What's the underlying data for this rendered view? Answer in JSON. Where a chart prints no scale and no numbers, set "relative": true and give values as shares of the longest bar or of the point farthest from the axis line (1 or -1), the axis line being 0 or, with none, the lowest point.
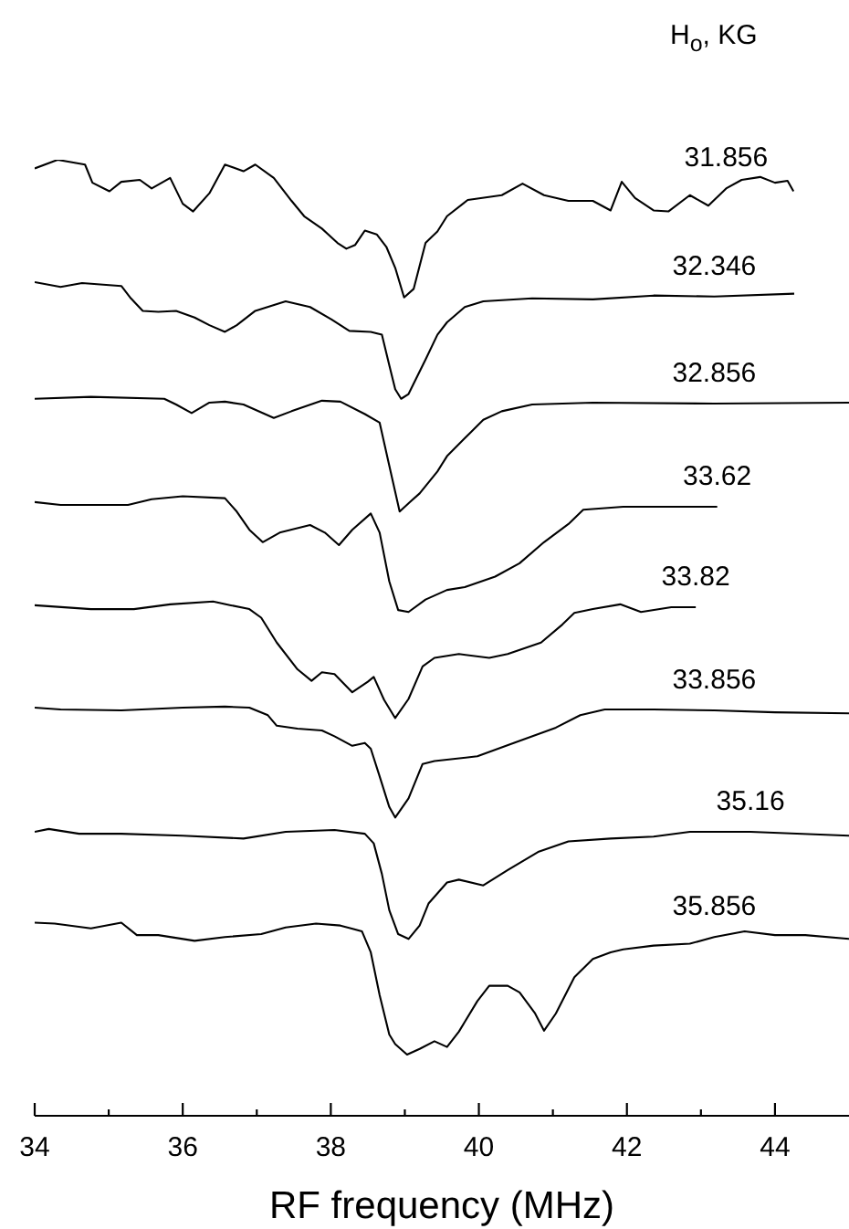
{
  "chart_data": {
    "type": "line",
    "relative": true,
    "xlabel": "RF frequency (MHz)",
    "legend_title": "H$_{o}$, KG",
    "xlim": [
      34,
      45
    ],
    "xticks": [
      34,
      {
        "value": 35,
        "label": null
      },
      36,
      {
        "value": 37,
        "label": null
      },
      38,
      {
        "value": 39,
        "label": null
      },
      40,
      {
        "value": 41,
        "label": null
      },
      42,
      {
        "value": 43,
        "label": null
      },
      44
    ],
    "line_style": "solid",
    "series": [
      {
        "name": "31.856",
        "color": "#000000",
        "x": [
          34.0,
          34.31,
          34.68,
          34.78,
          35.01,
          35.17,
          35.42,
          35.58,
          35.83,
          36.0,
          36.14,
          36.36,
          36.57,
          36.82,
          36.98,
          37.23,
          37.47,
          37.64,
          37.88,
          38.09,
          38.21,
          38.33,
          38.46,
          38.62,
          38.75,
          38.87,
          38.99,
          39.12,
          39.28,
          39.44,
          39.57,
          39.85,
          40.31,
          40.59,
          40.88,
          41.21,
          41.54,
          41.78,
          41.93,
          42.11,
          42.36,
          42.56,
          42.85,
          43.1,
          43.34,
          43.55,
          43.8,
          44.0,
          44.17,
          44.25
        ],
        "values": [
          0.991,
          1.0,
          0.995,
          0.976,
          0.967,
          0.977,
          0.979,
          0.97,
          0.981,
          0.954,
          0.946,
          0.965,
          0.995,
          0.988,
          0.995,
          0.981,
          0.957,
          0.941,
          0.928,
          0.913,
          0.907,
          0.911,
          0.926,
          0.922,
          0.909,
          0.887,
          0.856,
          0.865,
          0.913,
          0.925,
          0.941,
          0.958,
          0.963,
          0.975,
          0.963,
          0.957,
          0.957,
          0.947,
          0.977,
          0.96,
          0.947,
          0.946,
          0.963,
          0.952,
          0.97,
          0.979,
          0.982,
          0.976,
          0.978,
          0.967
        ]
      },
      {
        "name": "32.346",
        "color": "#000000",
        "x": [
          34.0,
          34.35,
          34.64,
          35.17,
          35.3,
          35.46,
          35.67,
          35.91,
          36.16,
          36.36,
          36.57,
          36.73,
          36.98,
          37.39,
          37.72,
          38.01,
          38.25,
          38.54,
          38.69,
          38.79,
          38.87,
          38.95,
          39.05,
          39.28,
          39.44,
          39.57,
          39.81,
          40.06,
          40.72,
          41.54,
          42.36,
          43.18,
          44.26
        ],
        "values": [
          0.872,
          0.867,
          0.871,
          0.868,
          0.855,
          0.842,
          0.841,
          0.842,
          0.835,
          0.827,
          0.82,
          0.827,
          0.842,
          0.852,
          0.846,
          0.833,
          0.821,
          0.82,
          0.817,
          0.785,
          0.76,
          0.75,
          0.755,
          0.791,
          0.817,
          0.83,
          0.846,
          0.852,
          0.855,
          0.854,
          0.858,
          0.857,
          0.86
        ]
      },
      {
        "name": "32.856",
        "color": "#000000",
        "x": [
          34.0,
          34.76,
          35.75,
          35.91,
          36.12,
          36.36,
          36.57,
          36.82,
          37.23,
          37.47,
          37.88,
          38.13,
          38.46,
          38.66,
          38.79,
          38.93,
          39.07,
          39.2,
          39.44,
          39.57,
          39.89,
          40.06,
          40.31,
          40.72,
          41.54,
          43.18,
          45.0
        ],
        "values": [
          0.75,
          0.752,
          0.75,
          0.744,
          0.735,
          0.746,
          0.747,
          0.744,
          0.73,
          0.737,
          0.748,
          0.747,
          0.734,
          0.725,
          0.68,
          0.632,
          0.642,
          0.651,
          0.674,
          0.69,
          0.715,
          0.728,
          0.737,
          0.744,
          0.746,
          0.745,
          0.746
        ]
      },
      {
        "name": "33.62",
        "color": "#000000",
        "x": [
          34.0,
          34.35,
          35.26,
          35.58,
          36.0,
          36.57,
          36.73,
          36.9,
          37.08,
          37.31,
          37.72,
          37.92,
          38.11,
          38.29,
          38.54,
          38.66,
          38.79,
          38.91,
          39.05,
          39.28,
          39.57,
          39.81,
          40.22,
          40.55,
          40.88,
          41.21,
          41.41,
          41.95,
          42.52,
          43.22
        ],
        "values": [
          0.642,
          0.639,
          0.639,
          0.645,
          0.648,
          0.646,
          0.632,
          0.613,
          0.6,
          0.61,
          0.618,
          0.61,
          0.597,
          0.613,
          0.63,
          0.61,
          0.559,
          0.529,
          0.527,
          0.54,
          0.55,
          0.553,
          0.564,
          0.578,
          0.6,
          0.619,
          0.634,
          0.637,
          0.637,
          0.637
        ]
      },
      {
        "name": "33.82",
        "color": "#000000",
        "x": [
          34.0,
          34.76,
          35.34,
          35.83,
          36.41,
          36.65,
          36.9,
          37.06,
          37.27,
          37.55,
          37.74,
          37.88,
          38.05,
          38.29,
          38.5,
          38.58,
          38.72,
          38.87,
          39.05,
          39.24,
          39.4,
          39.73,
          40.14,
          40.39,
          40.84,
          41.13,
          41.29,
          41.54,
          41.91,
          42.19,
          42.6,
          42.93
        ],
        "values": [
          0.534,
          0.53,
          0.53,
          0.535,
          0.538,
          0.534,
          0.53,
          0.521,
          0.495,
          0.467,
          0.455,
          0.464,
          0.462,
          0.443,
          0.454,
          0.459,
          0.435,
          0.416,
          0.436,
          0.47,
          0.479,
          0.483,
          0.479,
          0.483,
          0.495,
          0.514,
          0.526,
          0.53,
          0.535,
          0.527,
          0.532,
          0.532
        ]
      },
      {
        "name": "33.856",
        "color": "#000000",
        "x": [
          34.0,
          34.35,
          35.17,
          36.0,
          36.57,
          36.9,
          37.15,
          37.27,
          37.55,
          37.88,
          38.05,
          38.29,
          38.46,
          38.54,
          38.66,
          38.79,
          38.87,
          39.05,
          39.24,
          39.4,
          39.98,
          40.47,
          41.04,
          41.37,
          41.7,
          42.36,
          43.18,
          44.0,
          45.0
        ],
        "values": [
          0.427,
          0.425,
          0.424,
          0.427,
          0.428,
          0.427,
          0.419,
          0.408,
          0.405,
          0.403,
          0.397,
          0.387,
          0.39,
          0.384,
          0.355,
          0.323,
          0.312,
          0.332,
          0.368,
          0.371,
          0.376,
          0.39,
          0.406,
          0.419,
          0.425,
          0.425,
          0.424,
          0.422,
          0.421
        ]
      },
      {
        "name": "35.16",
        "color": "#000000",
        "x": [
          34.0,
          34.19,
          34.6,
          35.17,
          36.0,
          36.82,
          37.39,
          38.05,
          38.46,
          38.58,
          38.69,
          38.79,
          38.91,
          39.05,
          39.2,
          39.32,
          39.57,
          39.73,
          40.06,
          40.39,
          40.8,
          41.21,
          41.78,
          42.36,
          42.85,
          43.67,
          45.0
        ],
        "values": [
          0.297,
          0.3,
          0.295,
          0.295,
          0.293,
          0.29,
          0.297,
          0.299,
          0.295,
          0.285,
          0.253,
          0.215,
          0.19,
          0.185,
          0.199,
          0.222,
          0.244,
          0.247,
          0.241,
          0.257,
          0.276,
          0.287,
          0.29,
          0.292,
          0.297,
          0.297,
          0.293
        ]
      },
      {
        "name": "35.856",
        "color": "#000000",
        "x": [
          34.0,
          34.27,
          34.76,
          35.17,
          35.38,
          35.67,
          36.16,
          36.57,
          37.06,
          37.39,
          37.8,
          38.13,
          38.42,
          38.54,
          38.66,
          38.79,
          38.87,
          39.03,
          39.2,
          39.4,
          39.57,
          39.73,
          39.98,
          40.14,
          40.39,
          40.55,
          40.76,
          40.88,
          41.04,
          41.29,
          41.54,
          41.78,
          41.95,
          42.36,
          42.85,
          43.18,
          43.59,
          44.0,
          44.41,
          45.0
        ],
        "values": [
          0.202,
          0.201,
          0.196,
          0.202,
          0.189,
          0.189,
          0.183,
          0.187,
          0.19,
          0.197,
          0.201,
          0.199,
          0.193,
          0.171,
          0.126,
          0.085,
          0.075,
          0.064,
          0.07,
          0.078,
          0.072,
          0.088,
          0.12,
          0.136,
          0.136,
          0.129,
          0.107,
          0.089,
          0.107,
          0.145,
          0.164,
          0.171,
          0.174,
          0.178,
          0.18,
          0.187,
          0.193,
          0.189,
          0.189,
          0.185
        ]
      }
    ]
  }
}
